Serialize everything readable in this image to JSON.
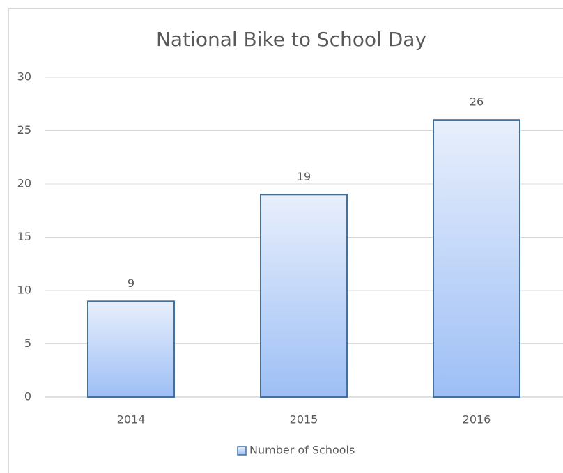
{
  "chart_data": {
    "type": "bar",
    "title": "National Bike to School Day",
    "categories": [
      "2014",
      "2015",
      "2016"
    ],
    "series": [
      {
        "name": "Number of Schools",
        "color": "#9dbff5",
        "values": [
          9,
          19,
          26
        ]
      }
    ],
    "ylim": [
      0,
      30
    ],
    "yticks": [
      0,
      5,
      10,
      15,
      20,
      25,
      30
    ],
    "grid": true,
    "legend": "bottom"
  }
}
